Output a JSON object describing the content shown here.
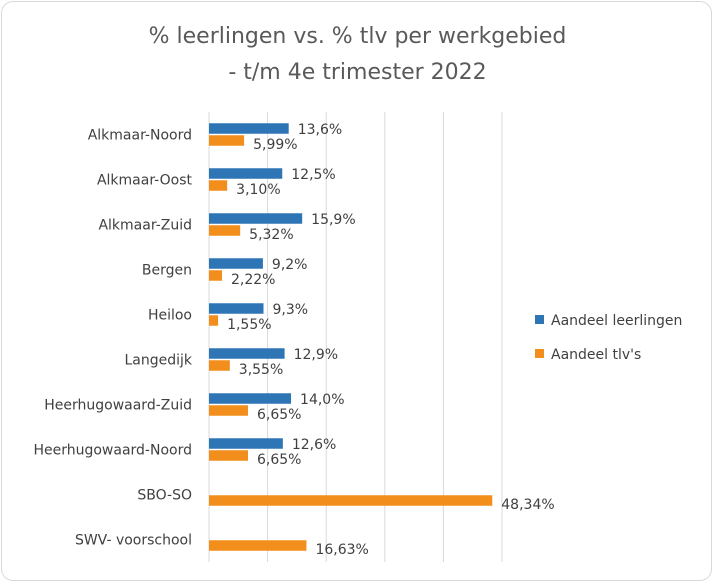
{
  "chart_data": {
    "type": "bar",
    "orientation": "horizontal",
    "title_line1": "% leerlingen vs. % tlv per werkgebied",
    "title_line2": "- t/m 4e trimester 2022",
    "categories": [
      "Alkmaar-Noord",
      "Alkmaar-Oost",
      "Alkmaar-Zuid",
      "Bergen",
      "Heiloo",
      "Langedijk",
      "Heerhugowaard-Zuid",
      "Heerhugowaard-Noord",
      "SBO-SO",
      "SWV- voorschool"
    ],
    "series": [
      {
        "name": "Aandeel leerlingen",
        "color": "#2e75b6",
        "values": [
          13.6,
          12.5,
          15.9,
          9.2,
          9.3,
          12.9,
          14.0,
          12.6,
          null,
          null
        ],
        "labels": [
          "13,6%",
          "12,5%",
          "15,9%",
          "9,2%",
          "9,3%",
          "12,9%",
          "14,0%",
          "12,6%",
          "",
          ""
        ]
      },
      {
        "name": "Aandeel tlv's",
        "color": "#f28e1c",
        "values": [
          5.99,
          3.1,
          5.32,
          2.22,
          1.55,
          3.55,
          6.65,
          6.65,
          48.34,
          16.63
        ],
        "labels": [
          "5,99%",
          "3,10%",
          "5,32%",
          "2,22%",
          "1,55%",
          "3,55%",
          "6,65%",
          "6,65%",
          "48,34%",
          "16,63%"
        ]
      }
    ],
    "xlim": [
      0,
      50
    ],
    "x_gridlines": [
      0,
      10,
      20,
      30,
      40,
      50
    ],
    "grid": true,
    "x_tick_labels_shown": false,
    "legend_position": "right"
  }
}
